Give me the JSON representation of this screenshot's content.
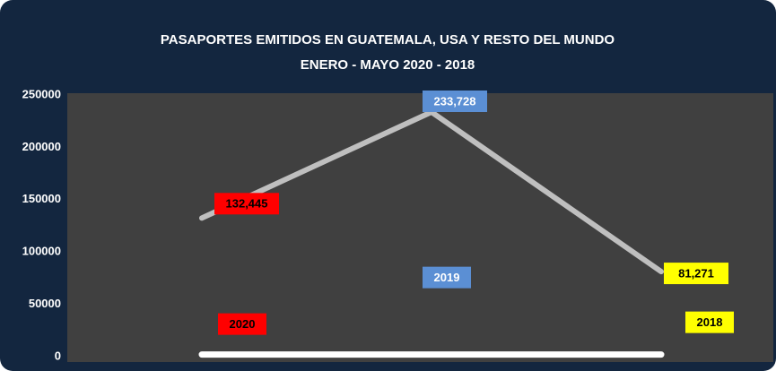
{
  "chart_data": {
    "type": "line",
    "title": "PASAPORTES EMITIDOS EN GUATEMALA, USA Y RESTO DEL MUNDO",
    "subtitle": "ENERO -  MAYO  2020 - 2018",
    "categories": [
      null,
      null,
      null
    ],
    "series": [
      {
        "color": "#ffffff",
        "values": [
          2020,
          2019,
          2018
        ]
      },
      {
        "color": "#bfbfbf",
        "values": [
          132445,
          233728,
          81271
        ],
        "value_labels": [
          "132,445",
          "233,728",
          "81,271"
        ]
      }
    ],
    "label_colors": [
      "#ff0000",
      "#5b8fd4",
      "#ffff00"
    ],
    "label_text_colors": [
      "#000000",
      "#ffffff",
      "#000000"
    ],
    "ylim": [
      0,
      250000
    ],
    "yticks": [
      0,
      50000,
      100000,
      150000,
      200000,
      250000
    ],
    "grid": false
  }
}
